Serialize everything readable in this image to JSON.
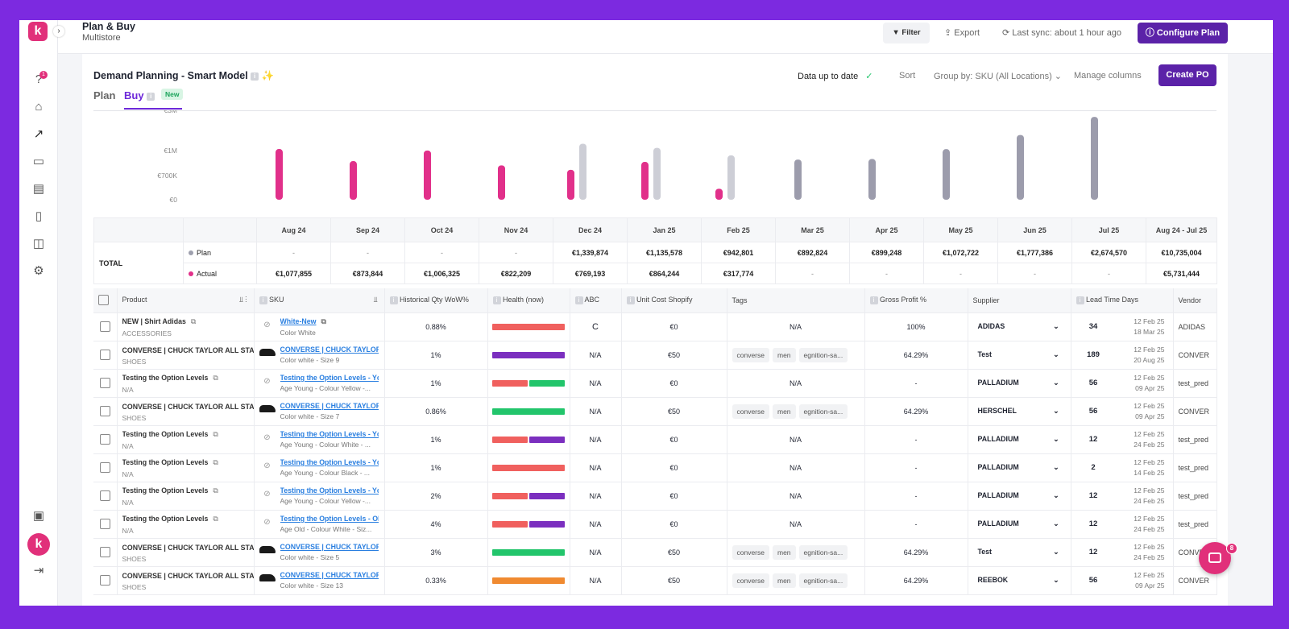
{
  "app": {
    "logo": "k",
    "title": "Plan & Buy",
    "subtitle": "Multistore"
  },
  "topbar": {
    "filter": "Filter",
    "export": "Export",
    "sync": "Last sync: about 1 hour ago",
    "configure": "Configure Plan"
  },
  "sidebar": {
    "help_badge": "1",
    "avatar": "k"
  },
  "page": {
    "title": "Demand Planning - Smart Model",
    "tab_plan": "Plan",
    "tab_buy": "Buy",
    "new_badge": "New",
    "status": "Data up to date",
    "sort": "Sort",
    "group_by": "Group by: SKU (All Locations)",
    "manage_columns": "Manage columns",
    "create_po": "Create PO"
  },
  "chart_data": {
    "type": "bar",
    "y_ticks": [
      "€3M",
      "€1M",
      "€700K",
      "€0"
    ],
    "categories": [
      "Aug 24",
      "Sep 24",
      "Oct 24",
      "Nov 24",
      "Dec 24",
      "Jan 25",
      "Feb 25",
      "Mar 25",
      "Apr 25",
      "May 25",
      "Jun 25",
      "Jul 25"
    ],
    "series": [
      {
        "name": "Actual",
        "color": "#e1308a",
        "values": [
          1077855,
          873844,
          1006325,
          822209,
          769193,
          864244,
          317774,
          null,
          null,
          null,
          null,
          null
        ]
      },
      {
        "name": "Plan",
        "color": "#cdced6",
        "values": [
          null,
          null,
          null,
          null,
          1339874,
          1135578,
          942801,
          892824,
          899248,
          1072722,
          1777386,
          2674570
        ]
      }
    ]
  },
  "totals": {
    "label": "TOTAL",
    "plan_label": "Plan",
    "actual_label": "Actual",
    "range_label": "Aug 24 - Jul 25",
    "plan": [
      "-",
      "-",
      "-",
      "-",
      "€1,339,874",
      "€1,135,578",
      "€942,801",
      "€892,824",
      "€899,248",
      "€1,072,722",
      "€1,777,386",
      "€2,674,570",
      "€10,735,004"
    ],
    "actual": [
      "€1,077,855",
      "€873,844",
      "€1,006,325",
      "€822,209",
      "€769,193",
      "€864,244",
      "€317,774",
      "-",
      "-",
      "-",
      "-",
      "-",
      "€5,731,444"
    ]
  },
  "columns": [
    "Product",
    "SKU",
    "Historical Qty WoW%",
    "Health (now)",
    "ABC",
    "Unit Cost Shopify",
    "Tags",
    "Gross Profit %",
    "Supplier",
    "Lead Time Days",
    "Vendor"
  ],
  "rows": [
    {
      "product": "NEW | Shirt Adidas",
      "category": "ACCESSORIES",
      "sku": "White-New",
      "variant": "Color White",
      "shoe": false,
      "wow": "0.88%",
      "health": [
        "#f0605e"
      ],
      "abc": "C",
      "cost": "€0",
      "tags": [],
      "gp": "100%",
      "supplier": "ADIDAS",
      "lead": "34",
      "d1": "12 Feb 25",
      "d2": "18 Mar 25",
      "vendor": "ADIDAS"
    },
    {
      "product": "CONVERSE | CHUCK TAYLOR ALL STA",
      "category": "SHOES",
      "sku": "CONVERSE | CHUCK TAYLOR",
      "variant": "Color white - Size 9",
      "shoe": true,
      "wow": "1%",
      "health": [
        "#7b2fbf"
      ],
      "abc": "N/A",
      "cost": "€50",
      "tags": [
        "converse",
        "men",
        "egnition-sa..."
      ],
      "gp": "64.29%",
      "supplier": "Test",
      "lead": "189",
      "d1": "12 Feb 25",
      "d2": "20 Aug 25",
      "vendor": "CONVER"
    },
    {
      "product": "Testing the Option Levels",
      "category": "N/A",
      "sku": "Testing the Option Levels - Yc",
      "variant": "Age Young - Colour Yellow -...",
      "shoe": false,
      "wow": "1%",
      "health": [
        "#f0605e",
        "#22c56b"
      ],
      "abc": "N/A",
      "cost": "€0",
      "tags": [],
      "gp": "-",
      "supplier": "PALLADIUM",
      "lead": "56",
      "d1": "12 Feb 25",
      "d2": "09 Apr 25",
      "vendor": "test_pred"
    },
    {
      "product": "CONVERSE | CHUCK TAYLOR ALL STA",
      "category": "SHOES",
      "sku": "CONVERSE | CHUCK TAYLOR",
      "variant": "Color white - Size 7",
      "shoe": true,
      "wow": "0.86%",
      "health": [
        "#22c56b"
      ],
      "abc": "N/A",
      "cost": "€50",
      "tags": [
        "converse",
        "men",
        "egnition-sa..."
      ],
      "gp": "64.29%",
      "supplier": "HERSCHEL",
      "lead": "56",
      "d1": "12 Feb 25",
      "d2": "09 Apr 25",
      "vendor": "CONVER"
    },
    {
      "product": "Testing the Option Levels",
      "category": "N/A",
      "sku": "Testing the Option Levels - Yc",
      "variant": "Age Young - Colour White - ...",
      "shoe": false,
      "wow": "1%",
      "health": [
        "#f0605e",
        "#7b2fbf"
      ],
      "abc": "N/A",
      "cost": "€0",
      "tags": [],
      "gp": "-",
      "supplier": "PALLADIUM",
      "lead": "12",
      "d1": "12 Feb 25",
      "d2": "24 Feb 25",
      "vendor": "test_pred"
    },
    {
      "product": "Testing the Option Levels",
      "category": "N/A",
      "sku": "Testing the Option Levels - Yc",
      "variant": "Age Young - Colour Black - ...",
      "shoe": false,
      "wow": "1%",
      "health": [
        "#f0605e"
      ],
      "abc": "N/A",
      "cost": "€0",
      "tags": [],
      "gp": "-",
      "supplier": "PALLADIUM",
      "lead": "2",
      "d1": "12 Feb 25",
      "d2": "14 Feb 25",
      "vendor": "test_pred"
    },
    {
      "product": "Testing the Option Levels",
      "category": "N/A",
      "sku": "Testing the Option Levels - Yc",
      "variant": "Age Young - Colour Yellow -...",
      "shoe": false,
      "wow": "2%",
      "health": [
        "#f0605e",
        "#7b2fbf"
      ],
      "abc": "N/A",
      "cost": "€0",
      "tags": [],
      "gp": "-",
      "supplier": "PALLADIUM",
      "lead": "12",
      "d1": "12 Feb 25",
      "d2": "24 Feb 25",
      "vendor": "test_pred"
    },
    {
      "product": "Testing the Option Levels",
      "category": "N/A",
      "sku": "Testing the Option Levels - Ol",
      "variant": "Age Old - Colour White - Siz...",
      "shoe": false,
      "wow": "4%",
      "health": [
        "#f0605e",
        "#7b2fbf"
      ],
      "abc": "N/A",
      "cost": "€0",
      "tags": [],
      "gp": "-",
      "supplier": "PALLADIUM",
      "lead": "12",
      "d1": "12 Feb 25",
      "d2": "24 Feb 25",
      "vendor": "test_pred"
    },
    {
      "product": "CONVERSE | CHUCK TAYLOR ALL STA",
      "category": "SHOES",
      "sku": "CONVERSE | CHUCK TAYLOR",
      "variant": "Color white - Size 5",
      "shoe": true,
      "wow": "3%",
      "health": [
        "#22c56b"
      ],
      "abc": "N/A",
      "cost": "€50",
      "tags": [
        "converse",
        "men",
        "egnition-sa..."
      ],
      "gp": "64.29%",
      "supplier": "Test",
      "lead": "12",
      "d1": "12 Feb 25",
      "d2": "24 Feb 25",
      "vendor": "CONVER"
    },
    {
      "product": "CONVERSE | CHUCK TAYLOR ALL STA",
      "category": "SHOES",
      "sku": "CONVERSE | CHUCK TAYLOR",
      "variant": "Color white - Size 13",
      "shoe": true,
      "wow": "0.33%",
      "health": [
        "#f08a30"
      ],
      "abc": "N/A",
      "cost": "€50",
      "tags": [
        "converse",
        "men",
        "egnition-sa..."
      ],
      "gp": "64.29%",
      "supplier": "REEBOK",
      "lead": "56",
      "d1": "12 Feb 25",
      "d2": "09 Apr 25",
      "vendor": "CONVER"
    }
  ],
  "na": "N/A",
  "chat_badge": "8"
}
